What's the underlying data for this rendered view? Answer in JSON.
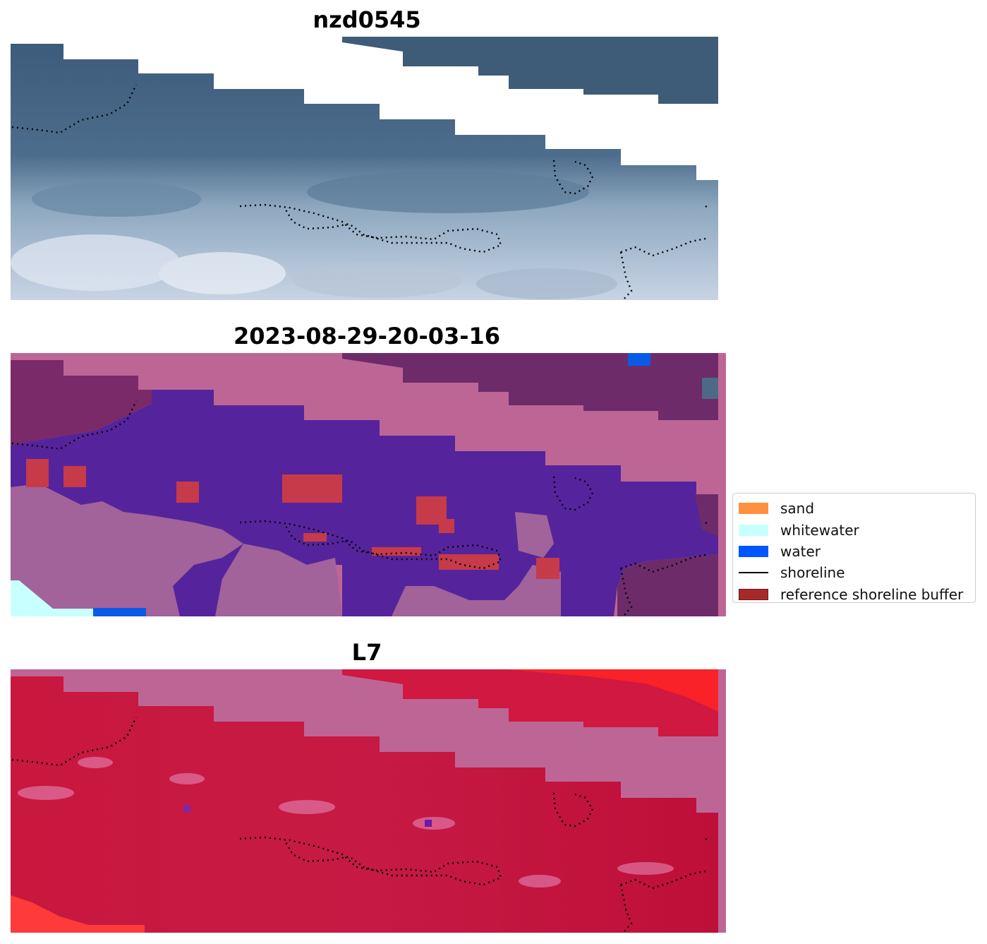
{
  "panels": [
    {
      "title": "nzd0545",
      "kind": "rgb"
    },
    {
      "title": "2023-08-29-20-03-16",
      "kind": "classified"
    },
    {
      "title": "L7",
      "kind": "index"
    }
  ],
  "legend": {
    "items": [
      {
        "label": "sand",
        "type": "patch",
        "color": "#ff9040"
      },
      {
        "label": "whitewater",
        "type": "patch",
        "color": "#c8ffff"
      },
      {
        "label": "water",
        "type": "patch",
        "color": "#0055ff"
      },
      {
        "label": "shoreline",
        "type": "line",
        "color": "#000000"
      },
      {
        "label": "reference shoreline buffer",
        "type": "patch",
        "color": "#a52a2a",
        "edge": "#7a1414"
      }
    ]
  },
  "colors": {
    "no_data_mask": "#bd6696",
    "class_background": "#55249c",
    "class_lower": "#a2629a",
    "class_upper": "#7a2a68",
    "buffer_overlay": "#c63a4a",
    "index_base": "#c2143e",
    "index_bright": "#ff2a2a",
    "shoreline": "#000000"
  }
}
